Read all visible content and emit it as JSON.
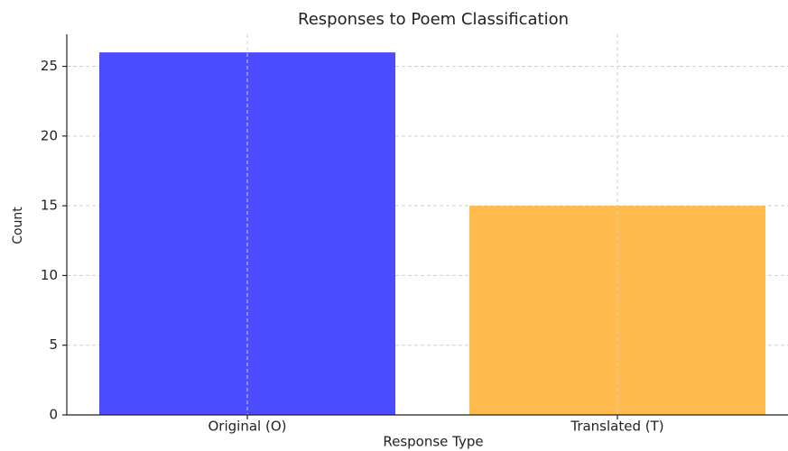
{
  "chart_data": {
    "type": "bar",
    "title": "Responses to Poem Classification",
    "x_label": "Response Type",
    "y_label": "Count",
    "categories": [
      "Original (O)",
      "Translated (T)"
    ],
    "values": [
      26,
      15
    ],
    "colors": [
      "#4b4bff",
      "#ffbb4d"
    ],
    "ylim": [
      0,
      27.3
    ],
    "yticks": [
      0,
      5,
      10,
      15,
      20,
      25
    ],
    "grid": true
  }
}
